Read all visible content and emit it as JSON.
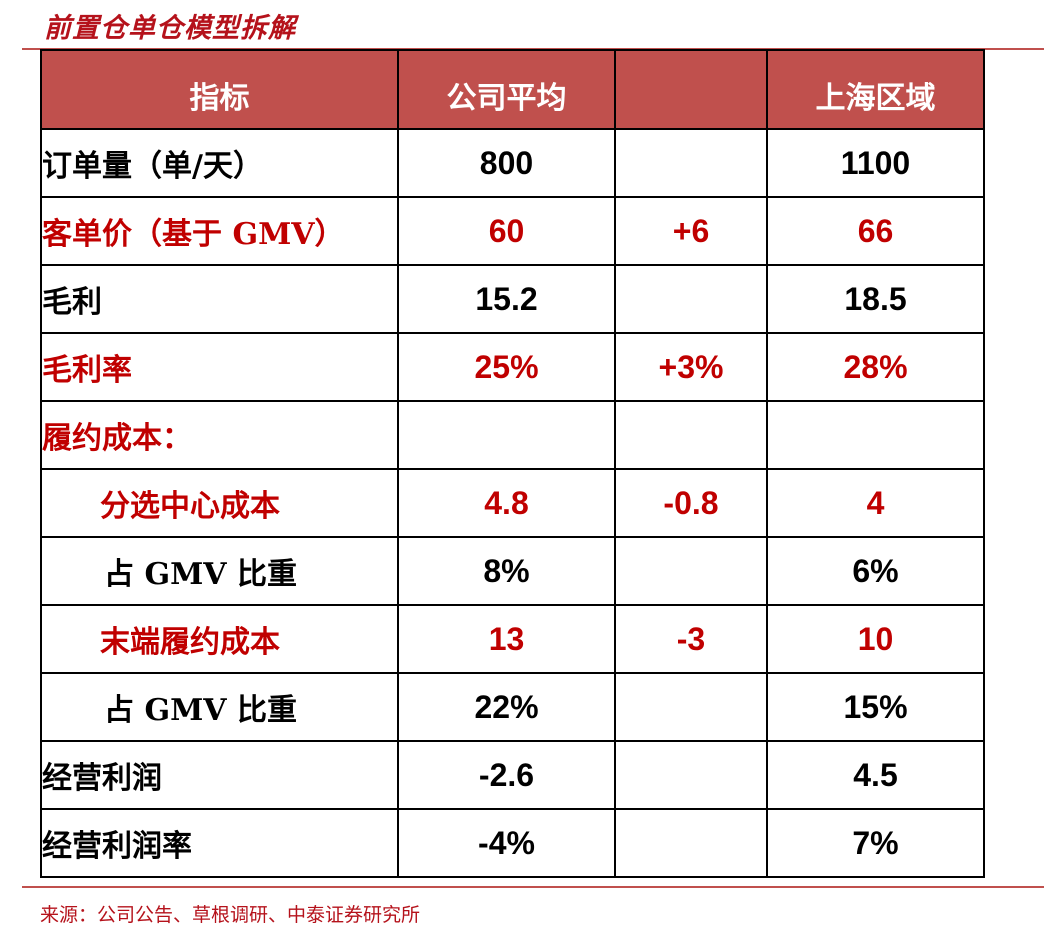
{
  "title": "前置仓单仓模型拆解",
  "headers": [
    "指标",
    "公司平均",
    "",
    "上海区域"
  ],
  "rows": [
    {
      "label": "订单量（单/天）",
      "avg": "800",
      "diff": "",
      "shanghai": "1100"
    },
    {
      "label": "客单价（基于 GMV）",
      "avg": "60",
      "diff": "+6",
      "shanghai": "66"
    },
    {
      "label": "毛利",
      "avg": "15.2",
      "diff": "",
      "shanghai": "18.5"
    },
    {
      "label": "毛利率",
      "avg": "25%",
      "diff": "+3%",
      "shanghai": "28%"
    },
    {
      "label": "履约成本：",
      "avg": "",
      "diff": "",
      "shanghai": ""
    },
    {
      "label": "分选中心成本",
      "avg": "4.8",
      "diff": "-0.8",
      "shanghai": "4"
    },
    {
      "label": "占 GMV 比重",
      "avg": "8%",
      "diff": "",
      "shanghai": "6%"
    },
    {
      "label": "末端履约成本",
      "avg": "13",
      "diff": "-3",
      "shanghai": "10"
    },
    {
      "label": "占 GMV 比重",
      "avg": "22%",
      "diff": "",
      "shanghai": "15%"
    },
    {
      "label": "经营利润",
      "avg": "-2.6",
      "diff": "",
      "shanghai": "4.5"
    },
    {
      "label": "经营利润率",
      "avg": "-4%",
      "diff": "",
      "shanghai": "7%"
    }
  ],
  "source": "来源：公司公告、草根调研、中泰证券研究所",
  "colors": {
    "header_bg": "#c0504d",
    "highlight": "#c00000",
    "title": "#b5121b"
  }
}
